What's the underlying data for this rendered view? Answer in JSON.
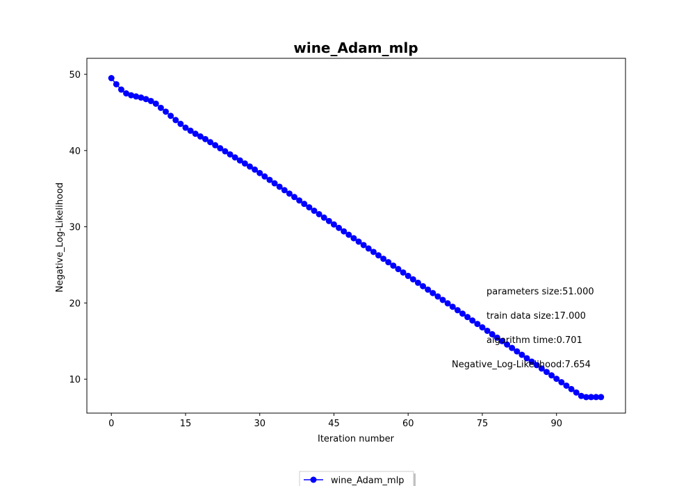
{
  "chart_data": {
    "type": "line",
    "title": "wine_Adam_mlp",
    "xlabel": "Iteration number",
    "ylabel": "Negative_Log-Likelihood",
    "xlim": [
      -4.95,
      103.95
    ],
    "ylim": [
      5.55,
      52.1
    ],
    "xticks": [
      0,
      15,
      30,
      45,
      60,
      75,
      90
    ],
    "yticks": [
      10,
      20,
      30,
      40,
      50
    ],
    "grid": false,
    "legend_position": "bottom-center",
    "color": "#0000ff",
    "marker": "circle",
    "series": [
      {
        "name": "wine_Adam_mlp",
        "x": [
          0,
          1,
          2,
          3,
          4,
          5,
          6,
          7,
          8,
          9,
          10,
          11,
          12,
          13,
          14,
          15,
          16,
          17,
          18,
          19,
          20,
          21,
          22,
          23,
          24,
          25,
          26,
          27,
          28,
          29,
          30,
          31,
          32,
          33,
          34,
          35,
          36,
          37,
          38,
          39,
          40,
          41,
          42,
          43,
          44,
          45,
          46,
          47,
          48,
          49,
          50,
          51,
          52,
          53,
          54,
          55,
          56,
          57,
          58,
          59,
          60,
          61,
          62,
          63,
          64,
          65,
          66,
          67,
          68,
          69,
          70,
          71,
          72,
          73,
          74,
          75,
          76,
          77,
          78,
          79,
          80,
          81,
          82,
          83,
          84,
          85,
          86,
          87,
          88,
          89,
          90,
          91,
          92,
          93,
          94,
          95,
          96,
          97,
          98,
          99
        ],
        "values": [
          49.5,
          48.7,
          48.0,
          47.5,
          47.25,
          47.1,
          46.95,
          46.75,
          46.5,
          46.15,
          45.6,
          45.1,
          44.55,
          44.0,
          43.5,
          43.0,
          42.6,
          42.2,
          41.85,
          41.5,
          41.1,
          40.7,
          40.3,
          39.9,
          39.5,
          39.1,
          38.7,
          38.3,
          37.9,
          37.5,
          37.05,
          36.6,
          36.15,
          35.7,
          35.25,
          34.8,
          34.35,
          33.9,
          33.45,
          33.0,
          32.55,
          32.1,
          31.65,
          31.2,
          30.75,
          30.3,
          29.85,
          29.4,
          28.95,
          28.5,
          28.05,
          27.6,
          27.15,
          26.7,
          26.25,
          25.8,
          25.35,
          24.9,
          24.45,
          24.0,
          23.55,
          23.1,
          22.65,
          22.2,
          21.75,
          21.3,
          20.85,
          20.4,
          19.95,
          19.5,
          19.05,
          18.6,
          18.15,
          17.7,
          17.25,
          16.8,
          16.35,
          15.9,
          15.45,
          15.0,
          14.55,
          14.1,
          13.65,
          13.2,
          12.75,
          12.3,
          11.85,
          11.4,
          10.95,
          10.5,
          10.05,
          9.6,
          9.15,
          8.7,
          8.25,
          7.8,
          7.65,
          7.654,
          7.654,
          7.654
        ]
      }
    ],
    "annotations": [
      "parameters size:51.000",
      "train data size:17.000",
      "algorithm time:0.701",
      "Negative_Log-Likelihood:7.654"
    ]
  }
}
